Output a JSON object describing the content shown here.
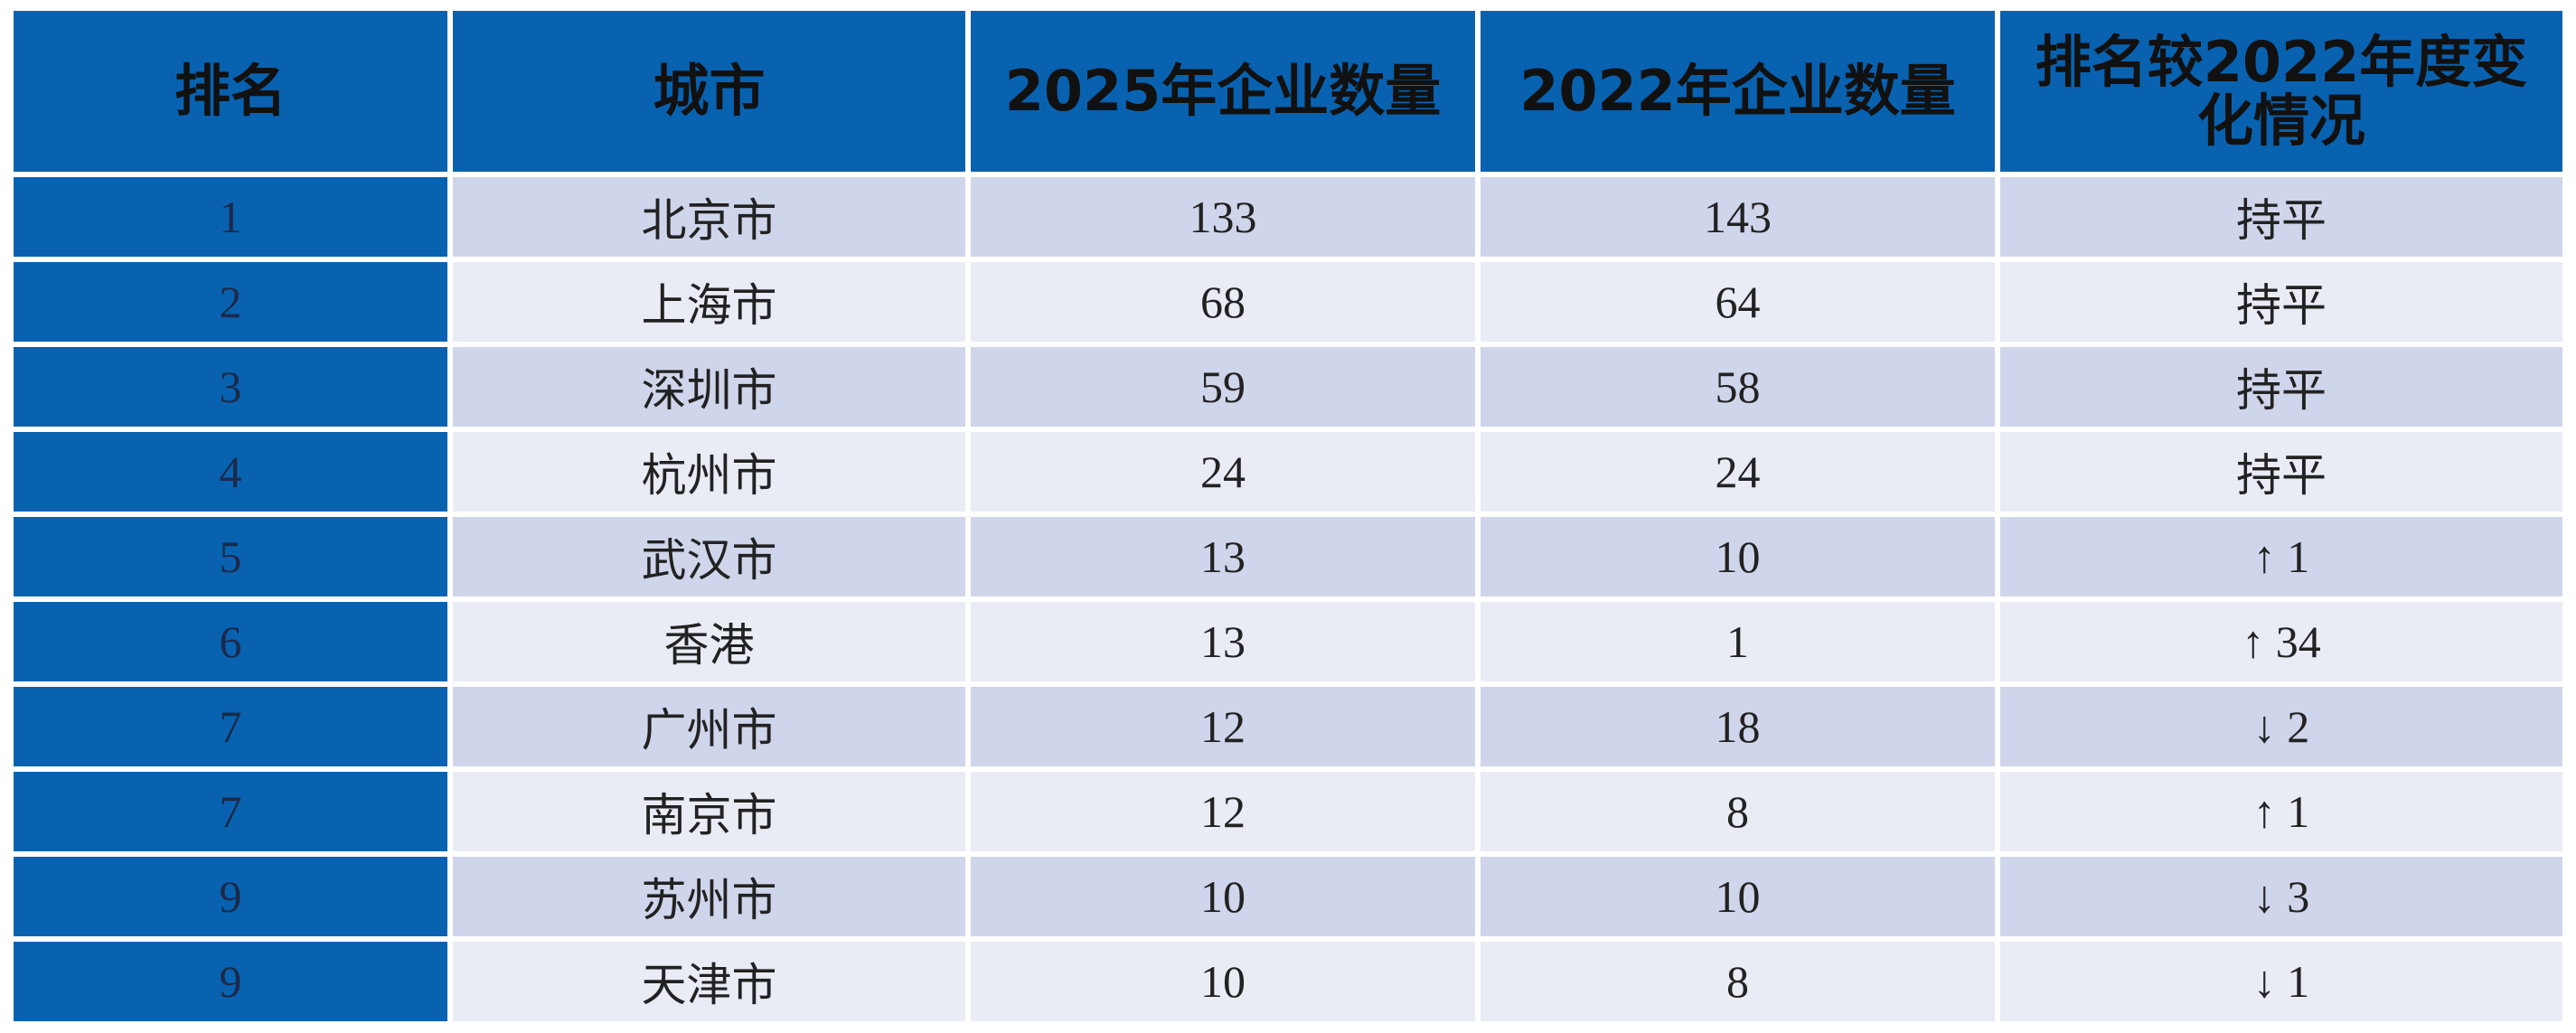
{
  "table": {
    "header": [
      "排名",
      "城市",
      "2025年企业数量",
      "2022年企业数量",
      "排名较2022年度变化情况"
    ],
    "rows": [
      [
        "1",
        "北京市",
        "133",
        "143",
        "持平"
      ],
      [
        "2",
        "上海市",
        "68",
        "64",
        "持平"
      ],
      [
        "3",
        "深圳市",
        "59",
        "58",
        "持平"
      ],
      [
        "4",
        "杭州市",
        "24",
        "24",
        "持平"
      ],
      [
        "5",
        "武汉市",
        "13",
        "10",
        "↑ 1"
      ],
      [
        "6",
        "香港",
        "13",
        "1",
        "↑ 34"
      ],
      [
        "7",
        "广州市",
        "12",
        "18",
        "↓ 2"
      ],
      [
        "7",
        "南京市",
        "12",
        "8",
        "↑ 1"
      ],
      [
        "9",
        "苏州市",
        "10",
        "10",
        "↓ 3"
      ],
      [
        "9",
        "天津市",
        "10",
        "8",
        "↓ 1"
      ]
    ]
  }
}
